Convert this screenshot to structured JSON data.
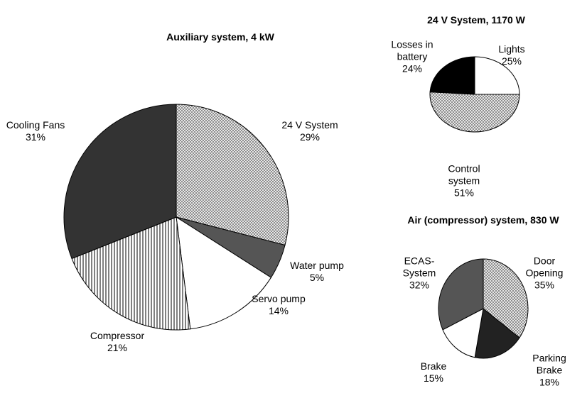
{
  "chart_data": [
    {
      "type": "pie",
      "title": "Auxiliary system, 4 kW",
      "categories": [
        "24 V System",
        "Water pump",
        "Servo pump",
        "Compressor",
        "Cooling Fans"
      ],
      "values": [
        29,
        5,
        14,
        21,
        31
      ],
      "value_labels": [
        "29%",
        "5%",
        "14%",
        "21%",
        "31%"
      ],
      "colors": [
        "#d8d8d8",
        "#555555",
        "#ffffff",
        "#ffffff",
        "#333333"
      ]
    },
    {
      "type": "pie",
      "title": "24 V System, 1170 W",
      "categories": [
        "Lights",
        "Control system",
        "Losses in battery"
      ],
      "values": [
        25,
        51,
        24
      ],
      "value_labels": [
        "25%",
        "51%",
        "24%"
      ],
      "colors": [
        "#ffffff",
        "#d8d8d8",
        "#000000"
      ]
    },
    {
      "type": "pie",
      "title": "Air (compressor) system, 830 W",
      "categories": [
        "Door Opening",
        "Parking Brake",
        "Brake",
        "ECAS-System"
      ],
      "values": [
        35,
        18,
        15,
        32
      ],
      "value_labels": [
        "35%",
        "18%",
        "15%",
        "32%"
      ],
      "colors": [
        "#d8d8d8",
        "#222222",
        "#ffffff",
        "#555555"
      ]
    }
  ]
}
